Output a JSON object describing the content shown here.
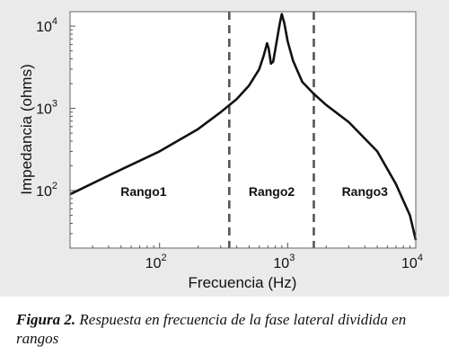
{
  "chart_data": {
    "type": "line",
    "xlabel": "Frecuencia (Hz)",
    "ylabel": "Impedancia (ohms)",
    "x_scale": "log",
    "y_scale": "log",
    "xlim": [
      20,
      10000
    ],
    "ylim": [
      20,
      15000
    ],
    "x_ticks": [
      {
        "value": 100,
        "base": "10",
        "exp": "2"
      },
      {
        "value": 1000,
        "base": "10",
        "exp": "3"
      },
      {
        "value": 10000,
        "base": "10",
        "exp": "4"
      }
    ],
    "y_ticks": [
      {
        "value": 100,
        "base": "10",
        "exp": "2"
      },
      {
        "value": 1000,
        "base": "10",
        "exp": "3"
      },
      {
        "value": 10000,
        "base": "10",
        "exp": "4"
      }
    ],
    "grid": false,
    "series": [
      {
        "color": "#111111",
        "points": [
          [
            20,
            90
          ],
          [
            50,
            180
          ],
          [
            100,
            300
          ],
          [
            200,
            560
          ],
          [
            300,
            900
          ],
          [
            400,
            1300
          ],
          [
            500,
            1900
          ],
          [
            600,
            3000
          ],
          [
            650,
            4400
          ],
          [
            690,
            6200
          ],
          [
            710,
            5400
          ],
          [
            740,
            3500
          ],
          [
            770,
            3700
          ],
          [
            820,
            6500
          ],
          [
            870,
            11000
          ],
          [
            900,
            14000
          ],
          [
            940,
            11000
          ],
          [
            1000,
            6500
          ],
          [
            1100,
            3800
          ],
          [
            1300,
            2100
          ],
          [
            1600,
            1500
          ],
          [
            2000,
            1100
          ],
          [
            3000,
            680
          ],
          [
            5000,
            300
          ],
          [
            7000,
            120
          ],
          [
            9000,
            50
          ],
          [
            10000,
            25
          ]
        ]
      }
    ],
    "dividers": [
      350,
      1600
    ],
    "regions": [
      {
        "label": "Rango1",
        "x": 75
      },
      {
        "label": "Rango2",
        "x": 750
      },
      {
        "label": "Rango3",
        "x": 4000
      }
    ]
  },
  "caption": {
    "figure_label": "Figura 2.",
    "text": " Respuesta en frecuencia de la fase lateral dividida en rangos"
  }
}
